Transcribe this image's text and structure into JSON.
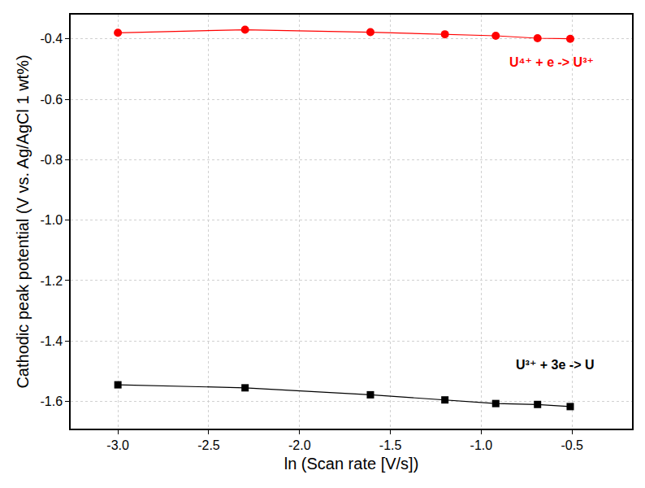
{
  "chart_data": {
    "type": "line",
    "x_label": "ln (Scan rate [V/s])",
    "y_label": "Cathodic peak potential (V vs. Ag/AgCl 1 wt%)",
    "x": [
      -3.0,
      -2.3,
      -1.61,
      -1.2,
      -0.92,
      -0.69,
      -0.51
    ],
    "series": [
      {
        "name": "U⁴⁺ + e -> U³⁺",
        "color": "#ff0000",
        "marker": "circle",
        "line_style": "solid",
        "values": [
          -0.38,
          -0.37,
          -0.378,
          -0.385,
          -0.39,
          -0.398,
          -0.4
        ]
      },
      {
        "name": "U³⁺ + 3e -> U",
        "color": "#000000",
        "marker": "square",
        "line_style": "solid",
        "values": [
          -1.545,
          -1.555,
          -1.578,
          -1.595,
          -1.607,
          -1.61,
          -1.617
        ]
      }
    ],
    "xlim": [
      -3.26,
      -0.17
    ],
    "xticks": [
      -3.0,
      -2.5,
      -2.0,
      -1.5,
      -1.0,
      -0.5
    ],
    "ylim": [
      -1.69,
      -0.32
    ],
    "yticks": [
      -1.6,
      -1.4,
      -1.2,
      -1.0,
      -0.8,
      -0.6,
      -0.4
    ],
    "grid": true
  }
}
